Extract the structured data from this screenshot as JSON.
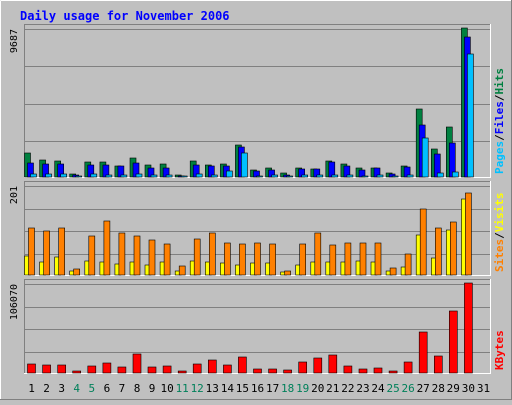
{
  "chart_data": {
    "type": "bar",
    "title": "Daily usage for November 2006",
    "categories": [
      "1",
      "2",
      "3",
      "4",
      "5",
      "6",
      "7",
      "8",
      "9",
      "10",
      "11",
      "12",
      "13",
      "14",
      "15",
      "16",
      "17",
      "18",
      "19",
      "20",
      "21",
      "22",
      "23",
      "24",
      "25",
      "26",
      "27",
      "28",
      "29",
      "30",
      "31"
    ],
    "weekend_days": [
      4,
      5,
      11,
      12,
      18,
      19,
      25,
      26
    ],
    "panels": [
      {
        "id": "hits-files-pages",
        "ymax_label": "9687",
        "ylim": [
          0,
          9687
        ],
        "legend": [
          {
            "label": "Pages",
            "color": "#00c0ff"
          },
          {
            "label": "/",
            "color": "#000000"
          },
          {
            "label": "Files",
            "color": "#0000ff"
          },
          {
            "label": "/",
            "color": "#000000"
          },
          {
            "label": "Hits",
            "color": "#008040"
          }
        ],
        "series": [
          {
            "name": "Hits",
            "color": "#008040",
            "values": [
              1575,
              1080,
              1060,
              210,
              965,
              975,
              735,
              1210,
              790,
              830,
              130,
              1010,
              765,
              815,
              2070,
              460,
              575,
              260,
              560,
              520,
              1060,
              840,
              570,
              590,
              270,
              710,
              4420,
              1830,
              3230,
              9687,
              0
            ]
          },
          {
            "name": "Files",
            "color": "#0000ff",
            "values": [
              915,
              845,
              840,
              110,
              790,
              775,
              685,
              920,
              575,
              615,
              75,
              755,
              725,
              730,
              1950,
              390,
              470,
              130,
              515,
              490,
              955,
              705,
              455,
              555,
              165,
              625,
              3365,
              1465,
              2185,
              9130,
              0
            ]
          },
          {
            "name": "Pages",
            "color": "#00c0ff",
            "values": [
              205,
              185,
              170,
              35,
              165,
              130,
              125,
              200,
              120,
              150,
              20,
              170,
              160,
              420,
              1570,
              85,
              115,
              55,
              110,
              110,
              120,
              115,
              90,
              100,
              40,
              125,
              2550,
              250,
              355,
              7990,
              0
            ]
          }
        ]
      },
      {
        "id": "visits-sites",
        "ymax_label": "201",
        "ylim": [
          0,
          201
        ],
        "legend": [
          {
            "label": "Sites",
            "color": "#ff8000"
          },
          {
            "label": "/",
            "color": "#000000"
          },
          {
            "label": "Visits",
            "color": "#ffff00"
          }
        ],
        "series": [
          {
            "name": "Visits",
            "color": "#ffff00",
            "values": [
              42,
              30,
              40,
              8,
              32,
              28,
              24,
              28,
              22,
              28,
              10,
              32,
              30,
              26,
              22,
              26,
              26,
              6,
              22,
              30,
              28,
              30,
              32,
              28,
              8,
              18,
              90,
              38,
              100,
              170,
              0
            ]
          },
          {
            "name": "Sites",
            "color": "#ff8000",
            "values": [
              104,
              98,
              106,
              14,
              86,
              120,
              94,
              88,
              78,
              70,
              20,
              80,
              94,
              72,
              70,
              72,
              70,
              10,
              70,
              94,
              66,
              72,
              72,
              72,
              16,
              48,
              148,
              104,
              118,
              184,
              0
            ]
          }
        ]
      },
      {
        "id": "kbytes",
        "ymax_label": "106070",
        "ylim": [
          0,
          106070
        ],
        "legend": [
          {
            "label": "KBytes",
            "color": "#ff0000"
          }
        ],
        "series": [
          {
            "name": "KBytes",
            "color": "#ff0000",
            "values": [
              11000,
              9000,
              9200,
              2600,
              8000,
              12000,
              7500,
              22000,
              7300,
              7800,
              2600,
              11000,
              15000,
              9700,
              19000,
              4200,
              5000,
              3000,
              13000,
              18000,
              21000,
              8700,
              5000,
              5500,
              2400,
              13000,
              48000,
              20000,
              72500,
              106070,
              0
            ]
          }
        ]
      }
    ]
  }
}
